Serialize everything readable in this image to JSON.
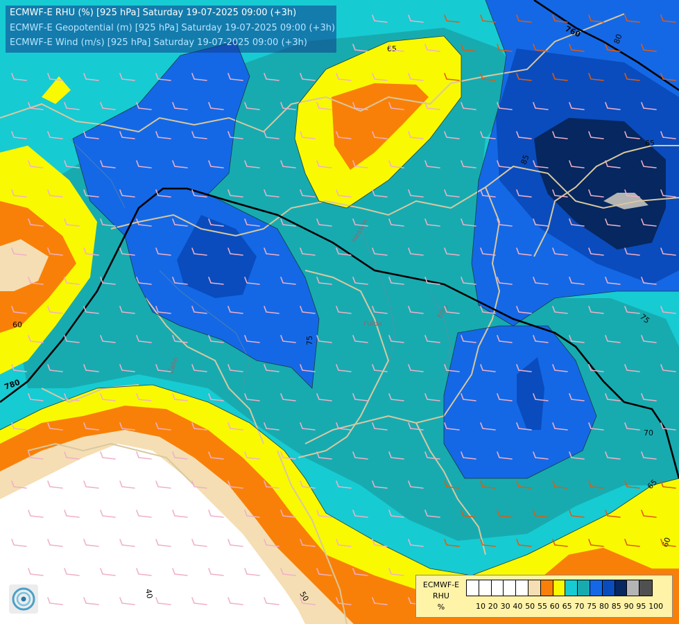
{
  "titles": {
    "rhu": "ECMWF-E RHU (%) [925 hPa] Saturday 19-07-2025 09:00 (+3h)",
    "geopotential": "ECMWF-E Geopotential (m) [925 hPa] Saturday 19-07-2025 09:00 (+3h)",
    "wind": "ECMWF-E Wind (m/s) [925 hPa] Saturday 19-07-2025 09:00 (+3h)"
  },
  "legend": {
    "name_line1": "ECMWF-E",
    "name_line2": "RHU",
    "unit": "%",
    "levels": [
      "10",
      "20",
      "30",
      "40",
      "50",
      "55",
      "60",
      "65",
      "70",
      "75",
      "80",
      "85",
      "90",
      "95",
      "100"
    ],
    "colors": [
      "#ffffff",
      "#ffffff",
      "#ffffff",
      "#ffffff",
      "#ffffff",
      "#f5deb3",
      "#f98008",
      "#f9f902",
      "#17cbd2",
      "#17abb0",
      "#1468e6",
      "#0a4cbd",
      "#06275f",
      "#b4b4b4",
      "#505050"
    ]
  },
  "contour_labels": {
    "geopotential": [
      "760",
      "780"
    ],
    "rhu": [
      "65",
      "80",
      "65",
      "75",
      "75",
      "70",
      "65",
      "60",
      "50",
      "40",
      "85",
      "60"
    ]
  },
  "map_labels": [
    "Hessen",
    "Fulda",
    "Zahn",
    "Elbe"
  ],
  "colors": {
    "geopotential_line": "#000000",
    "rhu_contour": "#1a3a3a",
    "borders": "#d9c8a0",
    "wind_barbs_low": "#f0b0c8",
    "wind_barbs_high": "#e05a10"
  }
}
